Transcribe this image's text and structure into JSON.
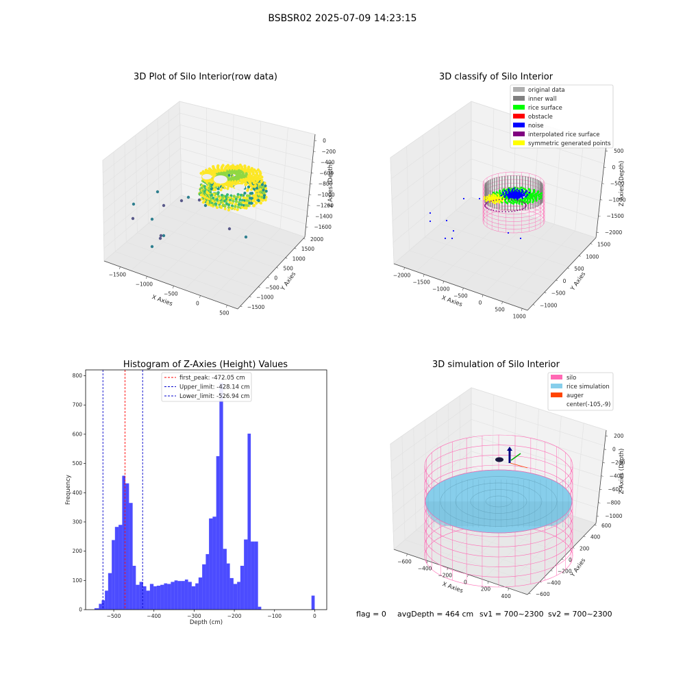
{
  "figure_title": "BSBSR02 2025-07-09 14:23:15",
  "footer": {
    "flag": "flag = 0",
    "avg_depth": "avgDepth = 464 cm",
    "sv1": "sv1 = 700~2300",
    "sv2": "sv2 = 700~2300"
  },
  "chart_data": [
    {
      "type": "scatter",
      "title": "3D Plot of Silo Interior(row data)",
      "xlabel": "X Axies",
      "ylabel": "Y Axies",
      "zlabel": "Z Axies (Depth)",
      "x_ticks": [
        "−1500",
        "−1000",
        "−500",
        "0",
        "500"
      ],
      "y_ticks": [
        "−1500",
        "−1000",
        "−500",
        "0",
        "500",
        "1000",
        "1500",
        "2000"
      ],
      "z_ticks": [
        "0",
        "−200",
        "−400",
        "−600",
        "−800",
        "−1000",
        "−1200",
        "−1400",
        "−1600"
      ],
      "colormap": [
        "#440154",
        "#31688e",
        "#21908d",
        "#35b779",
        "#90d743",
        "#fde725"
      ]
    },
    {
      "type": "scatter",
      "title": "3D classify of Silo Interior",
      "xlabel": "X Axies",
      "ylabel": "Y Axies",
      "zlabel": "Z Axies (Depth)",
      "x_ticks": [
        "−2000",
        "−1500",
        "−1000",
        "−500",
        "0",
        "500",
        "1000"
      ],
      "y_ticks": [
        "−1000",
        "−500",
        "0",
        "500",
        "1000",
        "1500"
      ],
      "z_ticks": [
        "500",
        "0",
        "−500",
        "−1000",
        "−1500",
        "−2000"
      ],
      "legend": [
        {
          "name": "original data",
          "color": "#b0b0b0"
        },
        {
          "name": "inner wall",
          "color": "#808080"
        },
        {
          "name": "rice surface",
          "color": "#00ff00"
        },
        {
          "name": "obstacle",
          "color": "#ff0000"
        },
        {
          "name": "noise",
          "color": "#0000ff"
        },
        {
          "name": "interpolated rice surface",
          "color": "#800080"
        },
        {
          "name": "symmetric generated points",
          "color": "#ffff00"
        }
      ],
      "legend_position": "top-right"
    },
    {
      "type": "bar",
      "title": "Histogram of Z-Axies (Height) Values",
      "xlabel": "Depth (cm)",
      "ylabel": "Frequency",
      "xlim": [
        -570,
        30
      ],
      "ylim": [
        0,
        820
      ],
      "x_ticks": [
        -500,
        -400,
        -300,
        -200,
        -100,
        0
      ],
      "y_ticks": [
        0,
        100,
        200,
        300,
        400,
        500,
        600,
        700,
        800
      ],
      "bar_color": "#0000ff",
      "bins": [
        {
          "x0": -548,
          "x1": -537,
          "y": 5
        },
        {
          "x0": -537,
          "x1": -530,
          "y": 20
        },
        {
          "x0": -530,
          "x1": -522,
          "y": 32
        },
        {
          "x0": -522,
          "x1": -514,
          "y": 65
        },
        {
          "x0": -514,
          "x1": -505,
          "y": 125
        },
        {
          "x0": -505,
          "x1": -497,
          "y": 238
        },
        {
          "x0": -497,
          "x1": -488,
          "y": 283
        },
        {
          "x0": -488,
          "x1": -479,
          "y": 290
        },
        {
          "x0": -479,
          "x1": -471,
          "y": 458
        },
        {
          "x0": -471,
          "x1": -462,
          "y": 432
        },
        {
          "x0": -462,
          "x1": -453,
          "y": 365
        },
        {
          "x0": -453,
          "x1": -445,
          "y": 150
        },
        {
          "x0": -445,
          "x1": -436,
          "y": 85
        },
        {
          "x0": -436,
          "x1": -427,
          "y": 95
        },
        {
          "x0": -427,
          "x1": -419,
          "y": 80
        },
        {
          "x0": -419,
          "x1": -410,
          "y": 65
        },
        {
          "x0": -410,
          "x1": -401,
          "y": 88
        },
        {
          "x0": -401,
          "x1": -393,
          "y": 80
        },
        {
          "x0": -393,
          "x1": -384,
          "y": 82
        },
        {
          "x0": -384,
          "x1": -375,
          "y": 85
        },
        {
          "x0": -375,
          "x1": -367,
          "y": 90
        },
        {
          "x0": -367,
          "x1": -358,
          "y": 88
        },
        {
          "x0": -358,
          "x1": -349,
          "y": 95
        },
        {
          "x0": -349,
          "x1": -341,
          "y": 100
        },
        {
          "x0": -341,
          "x1": -332,
          "y": 98
        },
        {
          "x0": -332,
          "x1": -323,
          "y": 98
        },
        {
          "x0": -323,
          "x1": -315,
          "y": 103
        },
        {
          "x0": -315,
          "x1": -306,
          "y": 95
        },
        {
          "x0": -306,
          "x1": -297,
          "y": 80
        },
        {
          "x0": -297,
          "x1": -289,
          "y": 90
        },
        {
          "x0": -289,
          "x1": -280,
          "y": 110
        },
        {
          "x0": -280,
          "x1": -271,
          "y": 155
        },
        {
          "x0": -271,
          "x1": -263,
          "y": 190
        },
        {
          "x0": -263,
          "x1": -254,
          "y": 312
        },
        {
          "x0": -254,
          "x1": -245,
          "y": 318
        },
        {
          "x0": -245,
          "x1": -237,
          "y": 525
        },
        {
          "x0": -237,
          "x1": -228,
          "y": 776
        },
        {
          "x0": -228,
          "x1": -219,
          "y": 208
        },
        {
          "x0": -219,
          "x1": -211,
          "y": 158
        },
        {
          "x0": -211,
          "x1": -202,
          "y": 108
        },
        {
          "x0": -202,
          "x1": -193,
          "y": 88
        },
        {
          "x0": -193,
          "x1": -185,
          "y": 95
        },
        {
          "x0": -185,
          "x1": -176,
          "y": 150
        },
        {
          "x0": -176,
          "x1": -167,
          "y": 240
        },
        {
          "x0": -167,
          "x1": -159,
          "y": 602
        },
        {
          "x0": -159,
          "x1": -150,
          "y": 233
        },
        {
          "x0": -150,
          "x1": -141,
          "y": 233
        },
        {
          "x0": -141,
          "x1": -133,
          "y": 10
        },
        {
          "x0": -8,
          "x1": 0,
          "y": 48
        }
      ],
      "vlines": [
        {
          "label": "first_peak: -472.05 cm",
          "x": -472.05,
          "color": "#ff0000"
        },
        {
          "label": "Upper_limit: -428.14 cm",
          "x": -428.14,
          "color": "#0000cc"
        },
        {
          "label": "Lower_limit: -526.94 cm",
          "x": -526.94,
          "color": "#0000cc"
        }
      ],
      "legend_position": "top-center"
    },
    {
      "type": "scatter",
      "title": "3D simulation of Silo Interior",
      "xlabel": "X Axies",
      "ylabel": "Y Axies",
      "zlabel": "Z Axies (Depth)",
      "x_ticks": [
        "−600",
        "−400",
        "−200",
        "0",
        "200",
        "400"
      ],
      "y_ticks": [
        "−600",
        "−400",
        "−200",
        "0",
        "200",
        "400",
        "600"
      ],
      "z_ticks": [
        "200",
        "0",
        "−200",
        "−400",
        "−600",
        "−800",
        "−1000"
      ],
      "legend": [
        {
          "name": "silo",
          "color": "#ff69b4"
        },
        {
          "name": "rice simulation",
          "color": "#87ceeb"
        },
        {
          "name": "auger",
          "color": "#ff4500"
        },
        {
          "name": "center(-105,-9)",
          "color": ""
        }
      ],
      "legend_position": "top-right"
    }
  ]
}
